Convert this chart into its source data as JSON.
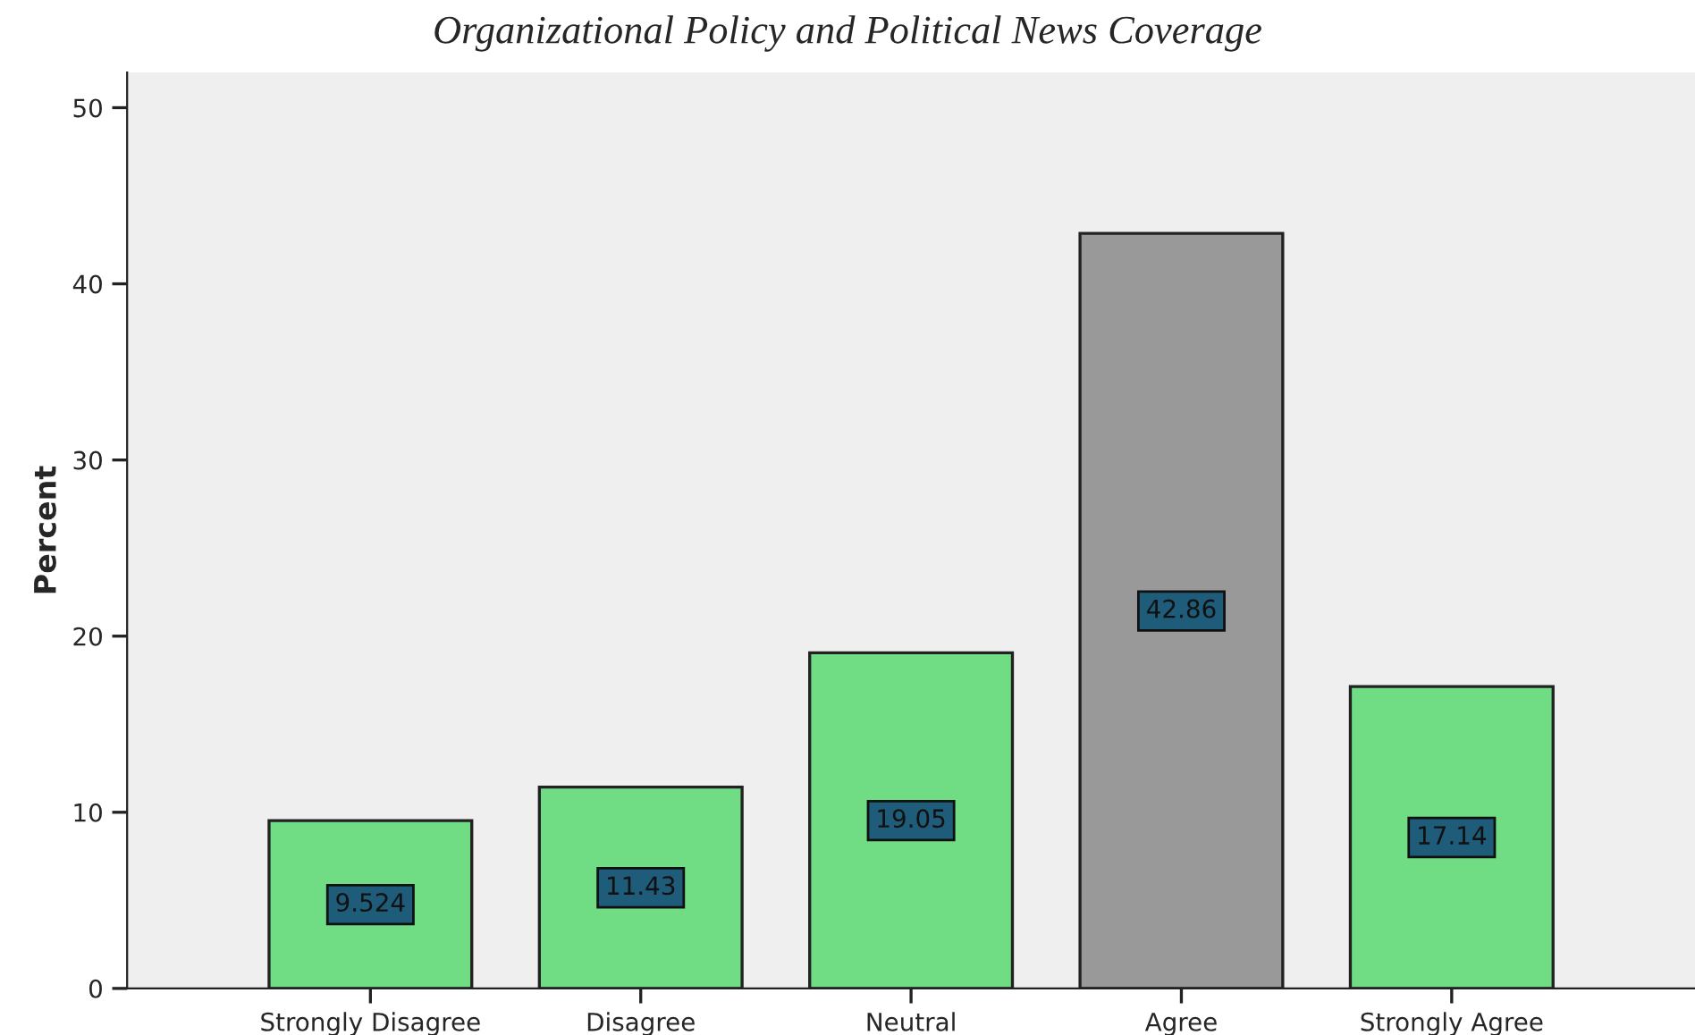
{
  "chart_data": {
    "type": "bar",
    "title": "Organizational Policy and Political News Coverage",
    "ylabel": "Percent",
    "categories": [
      "Strongly Disagree",
      "Disagree",
      "Neutral",
      "Agree",
      "Strongly Agree"
    ],
    "values": [
      9.524,
      11.43,
      19.05,
      42.86,
      17.14
    ],
    "colors": [
      "#70dc84",
      "#70dc84",
      "#70dc84",
      "#999999",
      "#70dc84"
    ],
    "ylim": [
      0,
      52
    ],
    "yticks": [
      0,
      10,
      20,
      30,
      40,
      50
    ],
    "grid": false,
    "data_labels": true
  }
}
